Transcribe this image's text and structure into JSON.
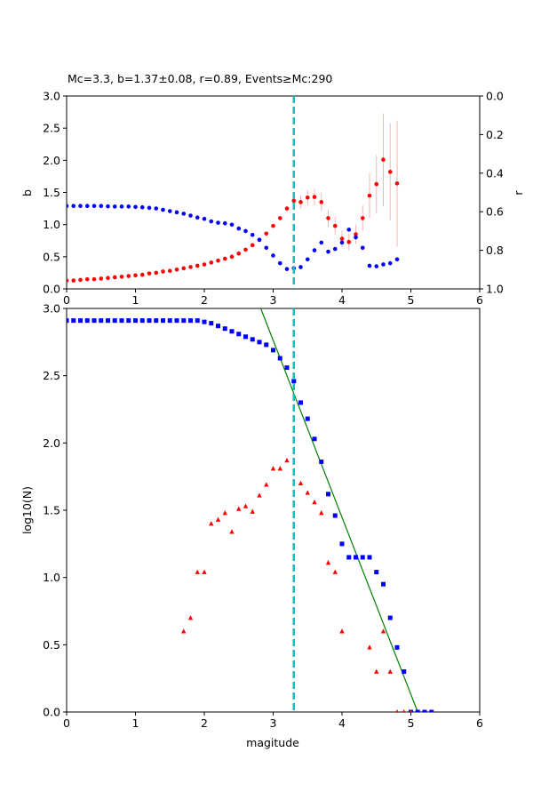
{
  "chart_data": [
    {
      "type": "scatter",
      "title": "Mc=3.3, b=1.37±0.08, r=0.89, Events≥Mc:290",
      "xlabel": "",
      "ylabel": "b",
      "y2label": "r",
      "xlim": [
        0,
        6
      ],
      "ylim": [
        0,
        3
      ],
      "y2lim": [
        1,
        0
      ],
      "x_ticks": [
        "0",
        "1",
        "2",
        "3",
        "4",
        "5",
        "6"
      ],
      "y_ticks": [
        "0.0",
        "0.5",
        "1.0",
        "1.5",
        "2.0",
        "2.5",
        "3.0"
      ],
      "y2_ticks": [
        "0.0",
        "0.2",
        "0.4",
        "0.6",
        "0.8",
        "1.0"
      ],
      "vline": {
        "x": 3.3,
        "color": "#17bebe",
        "style": "dashed"
      },
      "series": [
        {
          "name": "",
          "axis": "left",
          "color": "#ff0000",
          "x": [
            0.0,
            0.1,
            0.2,
            0.3,
            0.4,
            0.5,
            0.6,
            0.7,
            0.8,
            0.9,
            1.0,
            1.1,
            1.2,
            1.3,
            1.4,
            1.5,
            1.6,
            1.7,
            1.8,
            1.9,
            2.0,
            2.1,
            2.2,
            2.3,
            2.4,
            2.5,
            2.6,
            2.7,
            2.8,
            2.9,
            3.0,
            3.1,
            3.2,
            3.3,
            3.4,
            3.5,
            3.6,
            3.7,
            3.8,
            3.9,
            4.0,
            4.1,
            4.2,
            4.3,
            4.4,
            4.5,
            4.6,
            4.7,
            4.8
          ],
          "y": [
            0.13,
            0.13,
            0.14,
            0.15,
            0.15,
            0.16,
            0.17,
            0.18,
            0.19,
            0.2,
            0.21,
            0.22,
            0.24,
            0.25,
            0.27,
            0.28,
            0.3,
            0.32,
            0.34,
            0.36,
            0.38,
            0.41,
            0.44,
            0.47,
            0.5,
            0.55,
            0.61,
            0.68,
            0.76,
            0.86,
            0.98,
            1.1,
            1.25,
            1.37,
            1.35,
            1.42,
            1.43,
            1.35,
            1.1,
            0.98,
            0.78,
            0.73,
            0.85,
            1.1,
            1.45,
            1.63,
            2.01,
            1.82,
            1.64
          ],
          "err": [
            0,
            0,
            0,
            0,
            0,
            0,
            0,
            0,
            0,
            0,
            0,
            0,
            0,
            0,
            0,
            0,
            0,
            0,
            0,
            0,
            0,
            0,
            0,
            0,
            0,
            0,
            0,
            0,
            0,
            0,
            0,
            0,
            0,
            0.08,
            0.1,
            0.12,
            0.13,
            0.14,
            0.14,
            0.14,
            0.13,
            0.13,
            0.15,
            0.2,
            0.35,
            0.45,
            0.72,
            0.75,
            0.98
          ]
        },
        {
          "name": "",
          "axis": "right",
          "color": "#0000ff",
          "x": [
            0.0,
            0.1,
            0.2,
            0.3,
            0.4,
            0.5,
            0.6,
            0.7,
            0.8,
            0.9,
            1.0,
            1.1,
            1.2,
            1.3,
            1.4,
            1.5,
            1.6,
            1.7,
            1.8,
            1.9,
            2.0,
            2.1,
            2.2,
            2.3,
            2.4,
            2.5,
            2.6,
            2.7,
            2.8,
            2.9,
            3.0,
            3.1,
            3.2,
            3.3,
            3.4,
            3.5,
            3.6,
            3.7,
            3.8,
            3.9,
            4.0,
            4.1,
            4.2,
            4.3,
            4.4,
            4.5,
            4.6,
            4.7,
            4.8
          ],
          "y": [
            0.57,
            0.57,
            0.57,
            0.57,
            0.57,
            0.57,
            0.572,
            0.573,
            0.573,
            0.573,
            0.575,
            0.577,
            0.58,
            0.583,
            0.59,
            0.597,
            0.603,
            0.61,
            0.62,
            0.63,
            0.637,
            0.65,
            0.657,
            0.66,
            0.667,
            0.687,
            0.7,
            0.72,
            0.745,
            0.787,
            0.827,
            0.867,
            0.897,
            0.893,
            0.887,
            0.847,
            0.8,
            0.76,
            0.807,
            0.793,
            0.76,
            0.693,
            0.733,
            0.787,
            0.88,
            0.883,
            0.873,
            0.867,
            0.847
          ]
        }
      ]
    },
    {
      "type": "scatter",
      "title": "",
      "xlabel": "magitude",
      "ylabel": "log10(N)",
      "xlim": [
        0,
        6
      ],
      "ylim": [
        0,
        3
      ],
      "x_ticks": [
        "0",
        "1",
        "2",
        "3",
        "4",
        "5",
        "6"
      ],
      "y_ticks": [
        "0.0",
        "0.5",
        "1.0",
        "1.5",
        "2.0",
        "2.5",
        "3.0"
      ],
      "vline": {
        "x": 3.3,
        "color": "#17bebe",
        "style": "dashed"
      },
      "fit_line": {
        "color": "#008000",
        "x": [
          2.82,
          5.1
        ],
        "y": [
          3.0,
          0.0
        ]
      },
      "series": [
        {
          "name": "",
          "marker": "square",
          "color": "#0000ff",
          "x": [
            0.0,
            0.1,
            0.2,
            0.3,
            0.4,
            0.5,
            0.6,
            0.7,
            0.8,
            0.9,
            1.0,
            1.1,
            1.2,
            1.3,
            1.4,
            1.5,
            1.6,
            1.7,
            1.8,
            1.9,
            2.0,
            2.1,
            2.2,
            2.3,
            2.4,
            2.5,
            2.6,
            2.7,
            2.8,
            2.9,
            3.0,
            3.1,
            3.2,
            3.3,
            3.4,
            3.5,
            3.6,
            3.7,
            3.8,
            3.9,
            4.0,
            4.1,
            4.2,
            4.3,
            4.4,
            4.5,
            4.6,
            4.7,
            4.8,
            4.9,
            5.0,
            5.1,
            5.2,
            5.3
          ],
          "y": [
            2.91,
            2.91,
            2.91,
            2.91,
            2.91,
            2.91,
            2.91,
            2.91,
            2.91,
            2.91,
            2.91,
            2.91,
            2.91,
            2.91,
            2.91,
            2.91,
            2.91,
            2.91,
            2.91,
            2.91,
            2.9,
            2.89,
            2.87,
            2.85,
            2.83,
            2.81,
            2.79,
            2.77,
            2.75,
            2.73,
            2.69,
            2.63,
            2.56,
            2.46,
            2.3,
            2.18,
            2.03,
            1.86,
            1.62,
            1.46,
            1.25,
            1.15,
            1.15,
            1.15,
            1.15,
            1.04,
            0.95,
            0.7,
            0.48,
            0.3,
            0.0,
            0.0,
            0.0,
            0.0
          ]
        },
        {
          "name": "",
          "marker": "triangle",
          "color": "#ff0000",
          "x": [
            1.7,
            1.8,
            1.9,
            2.0,
            2.1,
            2.2,
            2.3,
            2.4,
            2.5,
            2.6,
            2.7,
            2.8,
            2.9,
            3.0,
            3.1,
            3.2,
            3.4,
            3.5,
            3.6,
            3.7,
            3.8,
            3.9,
            4.0,
            4.4,
            4.5,
            4.6,
            4.7,
            4.8,
            4.9,
            5.0
          ],
          "y": [
            0.6,
            0.7,
            1.04,
            1.04,
            1.4,
            1.43,
            1.48,
            1.34,
            1.51,
            1.53,
            1.49,
            1.61,
            1.69,
            1.81,
            1.81,
            1.87,
            1.7,
            1.63,
            1.56,
            1.48,
            1.11,
            1.04,
            0.6,
            0.48,
            0.3,
            0.6,
            0.3,
            0.0,
            0.0,
            0.0
          ]
        }
      ]
    }
  ]
}
